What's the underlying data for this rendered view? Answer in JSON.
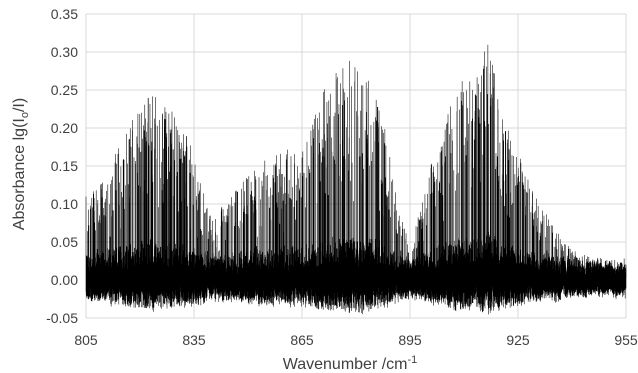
{
  "chart_data": {
    "type": "line",
    "title": "",
    "xlabel": "Wavenumber /cm",
    "xlabel_sup": "-1",
    "ylabel": "Absorbance lg(I",
    "ylabel_sub": "o",
    "ylabel_mid": "/I",
    "ylabel_end": ")",
    "xlim": [
      805,
      955
    ],
    "ylim": [
      -0.05,
      0.35
    ],
    "x_ticks": [
      805,
      835,
      865,
      895,
      925,
      955
    ],
    "x_tick_labels": [
      "805",
      "835",
      "865",
      "895",
      "925",
      "955"
    ],
    "y_ticks": [
      -0.05,
      0.0,
      0.05,
      0.1,
      0.15,
      0.2,
      0.25,
      0.3,
      0.35
    ],
    "y_tick_labels": [
      "-0.05",
      "0.00",
      "0.05",
      "0.10",
      "0.15",
      "0.20",
      "0.25",
      "0.30",
      "0.35"
    ],
    "grid": true,
    "line_color": "#000000",
    "grid_color": "#d9d9d9",
    "series": [
      {
        "x": [
          805,
          810,
          815,
          820,
          823,
          826,
          830,
          833,
          836,
          840,
          845,
          850,
          855,
          860,
          865,
          870,
          873,
          876,
          879,
          882,
          885,
          888,
          891,
          894,
          895,
          896,
          900,
          905,
          910,
          914,
          917,
          920,
          925,
          930,
          935,
          940,
          945,
          950,
          955
        ],
        "y": [
          0.11,
          0.13,
          0.19,
          0.23,
          0.25,
          0.23,
          0.22,
          0.2,
          0.14,
          0.08,
          0.11,
          0.14,
          0.16,
          0.17,
          0.18,
          0.24,
          0.27,
          0.29,
          0.29,
          0.28,
          0.26,
          0.2,
          0.12,
          0.06,
          0.02,
          0.06,
          0.14,
          0.22,
          0.27,
          0.27,
          0.33,
          0.22,
          0.17,
          0.11,
          0.07,
          0.04,
          0.03,
          0.015,
          0.01
        ]
      }
    ]
  }
}
